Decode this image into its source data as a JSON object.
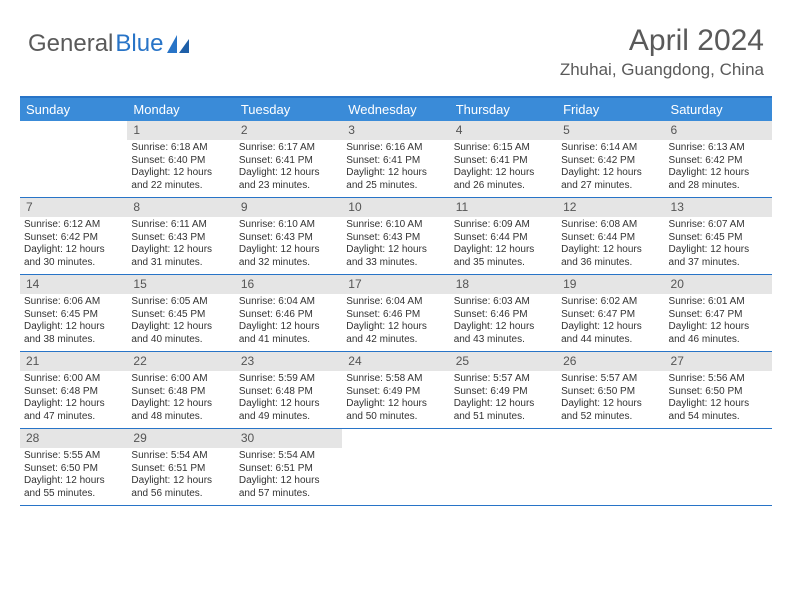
{
  "logo": {
    "text1": "General",
    "text2": "Blue"
  },
  "title": "April 2024",
  "location": "Zhuhai, Guangdong, China",
  "colors": {
    "header_bar": "#3a8bd8",
    "border": "#2874c7",
    "daynum_bg": "#e5e5e5",
    "text": "#333333",
    "muted": "#5a5a5a"
  },
  "daysOfWeek": [
    "Sunday",
    "Monday",
    "Tuesday",
    "Wednesday",
    "Thursday",
    "Friday",
    "Saturday"
  ],
  "weeks": [
    [
      {
        "empty": true
      },
      {
        "num": "1",
        "sunrise": "Sunrise: 6:18 AM",
        "sunset": "Sunset: 6:40 PM",
        "daylight": "Daylight: 12 hours and 22 minutes."
      },
      {
        "num": "2",
        "sunrise": "Sunrise: 6:17 AM",
        "sunset": "Sunset: 6:41 PM",
        "daylight": "Daylight: 12 hours and 23 minutes."
      },
      {
        "num": "3",
        "sunrise": "Sunrise: 6:16 AM",
        "sunset": "Sunset: 6:41 PM",
        "daylight": "Daylight: 12 hours and 25 minutes."
      },
      {
        "num": "4",
        "sunrise": "Sunrise: 6:15 AM",
        "sunset": "Sunset: 6:41 PM",
        "daylight": "Daylight: 12 hours and 26 minutes."
      },
      {
        "num": "5",
        "sunrise": "Sunrise: 6:14 AM",
        "sunset": "Sunset: 6:42 PM",
        "daylight": "Daylight: 12 hours and 27 minutes."
      },
      {
        "num": "6",
        "sunrise": "Sunrise: 6:13 AM",
        "sunset": "Sunset: 6:42 PM",
        "daylight": "Daylight: 12 hours and 28 minutes."
      }
    ],
    [
      {
        "num": "7",
        "sunrise": "Sunrise: 6:12 AM",
        "sunset": "Sunset: 6:42 PM",
        "daylight": "Daylight: 12 hours and 30 minutes."
      },
      {
        "num": "8",
        "sunrise": "Sunrise: 6:11 AM",
        "sunset": "Sunset: 6:43 PM",
        "daylight": "Daylight: 12 hours and 31 minutes."
      },
      {
        "num": "9",
        "sunrise": "Sunrise: 6:10 AM",
        "sunset": "Sunset: 6:43 PM",
        "daylight": "Daylight: 12 hours and 32 minutes."
      },
      {
        "num": "10",
        "sunrise": "Sunrise: 6:10 AM",
        "sunset": "Sunset: 6:43 PM",
        "daylight": "Daylight: 12 hours and 33 minutes."
      },
      {
        "num": "11",
        "sunrise": "Sunrise: 6:09 AM",
        "sunset": "Sunset: 6:44 PM",
        "daylight": "Daylight: 12 hours and 35 minutes."
      },
      {
        "num": "12",
        "sunrise": "Sunrise: 6:08 AM",
        "sunset": "Sunset: 6:44 PM",
        "daylight": "Daylight: 12 hours and 36 minutes."
      },
      {
        "num": "13",
        "sunrise": "Sunrise: 6:07 AM",
        "sunset": "Sunset: 6:45 PM",
        "daylight": "Daylight: 12 hours and 37 minutes."
      }
    ],
    [
      {
        "num": "14",
        "sunrise": "Sunrise: 6:06 AM",
        "sunset": "Sunset: 6:45 PM",
        "daylight": "Daylight: 12 hours and 38 minutes."
      },
      {
        "num": "15",
        "sunrise": "Sunrise: 6:05 AM",
        "sunset": "Sunset: 6:45 PM",
        "daylight": "Daylight: 12 hours and 40 minutes."
      },
      {
        "num": "16",
        "sunrise": "Sunrise: 6:04 AM",
        "sunset": "Sunset: 6:46 PM",
        "daylight": "Daylight: 12 hours and 41 minutes."
      },
      {
        "num": "17",
        "sunrise": "Sunrise: 6:04 AM",
        "sunset": "Sunset: 6:46 PM",
        "daylight": "Daylight: 12 hours and 42 minutes."
      },
      {
        "num": "18",
        "sunrise": "Sunrise: 6:03 AM",
        "sunset": "Sunset: 6:46 PM",
        "daylight": "Daylight: 12 hours and 43 minutes."
      },
      {
        "num": "19",
        "sunrise": "Sunrise: 6:02 AM",
        "sunset": "Sunset: 6:47 PM",
        "daylight": "Daylight: 12 hours and 44 minutes."
      },
      {
        "num": "20",
        "sunrise": "Sunrise: 6:01 AM",
        "sunset": "Sunset: 6:47 PM",
        "daylight": "Daylight: 12 hours and 46 minutes."
      }
    ],
    [
      {
        "num": "21",
        "sunrise": "Sunrise: 6:00 AM",
        "sunset": "Sunset: 6:48 PM",
        "daylight": "Daylight: 12 hours and 47 minutes."
      },
      {
        "num": "22",
        "sunrise": "Sunrise: 6:00 AM",
        "sunset": "Sunset: 6:48 PM",
        "daylight": "Daylight: 12 hours and 48 minutes."
      },
      {
        "num": "23",
        "sunrise": "Sunrise: 5:59 AM",
        "sunset": "Sunset: 6:48 PM",
        "daylight": "Daylight: 12 hours and 49 minutes."
      },
      {
        "num": "24",
        "sunrise": "Sunrise: 5:58 AM",
        "sunset": "Sunset: 6:49 PM",
        "daylight": "Daylight: 12 hours and 50 minutes."
      },
      {
        "num": "25",
        "sunrise": "Sunrise: 5:57 AM",
        "sunset": "Sunset: 6:49 PM",
        "daylight": "Daylight: 12 hours and 51 minutes."
      },
      {
        "num": "26",
        "sunrise": "Sunrise: 5:57 AM",
        "sunset": "Sunset: 6:50 PM",
        "daylight": "Daylight: 12 hours and 52 minutes."
      },
      {
        "num": "27",
        "sunrise": "Sunrise: 5:56 AM",
        "sunset": "Sunset: 6:50 PM",
        "daylight": "Daylight: 12 hours and 54 minutes."
      }
    ],
    [
      {
        "num": "28",
        "sunrise": "Sunrise: 5:55 AM",
        "sunset": "Sunset: 6:50 PM",
        "daylight": "Daylight: 12 hours and 55 minutes."
      },
      {
        "num": "29",
        "sunrise": "Sunrise: 5:54 AM",
        "sunset": "Sunset: 6:51 PM",
        "daylight": "Daylight: 12 hours and 56 minutes."
      },
      {
        "num": "30",
        "sunrise": "Sunrise: 5:54 AM",
        "sunset": "Sunset: 6:51 PM",
        "daylight": "Daylight: 12 hours and 57 minutes."
      },
      {
        "empty": true
      },
      {
        "empty": true
      },
      {
        "empty": true
      },
      {
        "empty": true
      }
    ]
  ]
}
